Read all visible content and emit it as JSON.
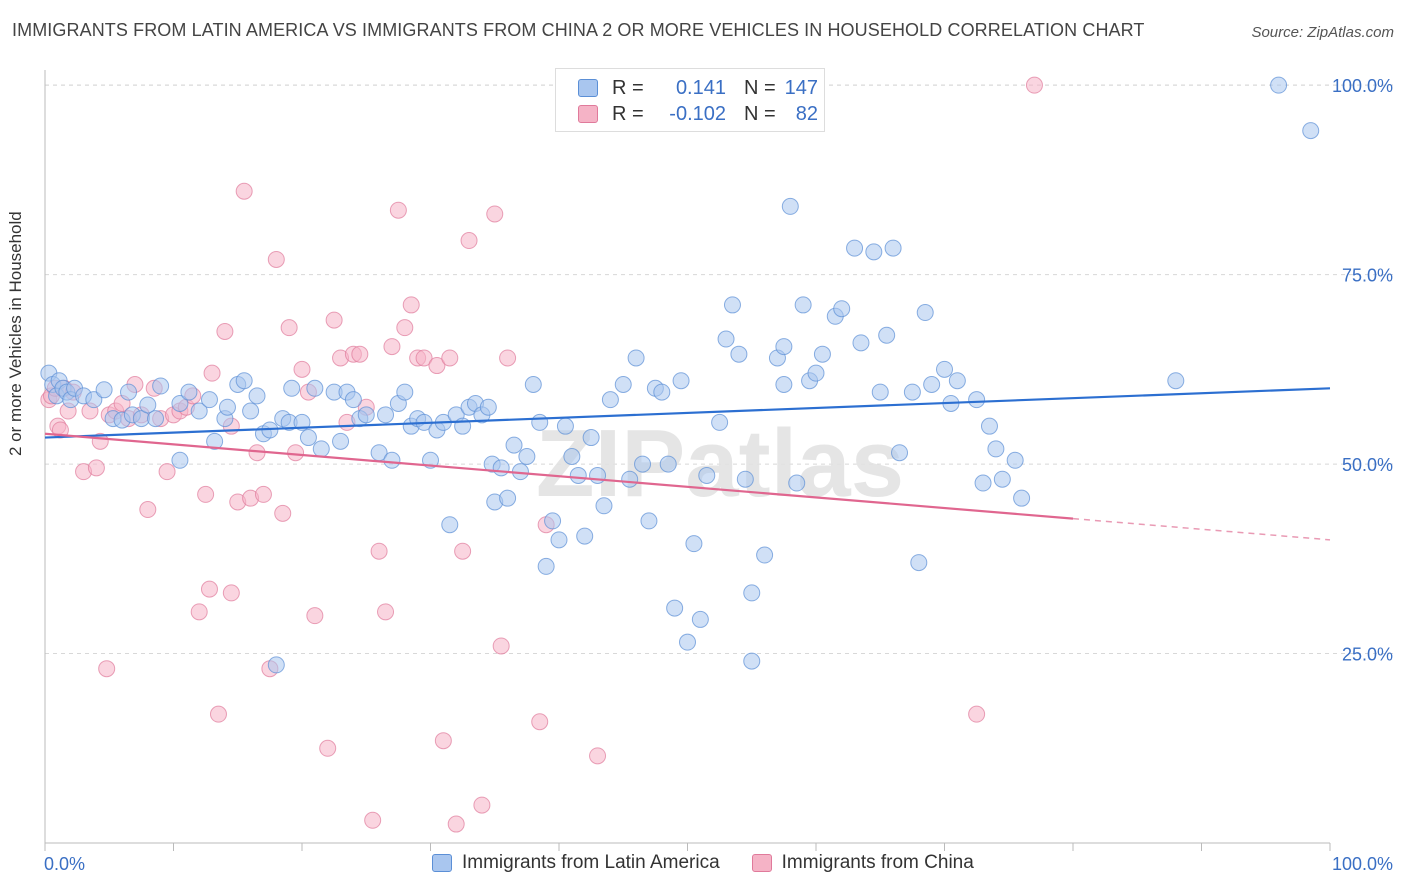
{
  "title": "IMMIGRANTS FROM LATIN AMERICA VS IMMIGRANTS FROM CHINA 2 OR MORE VEHICLES IN HOUSEHOLD CORRELATION CHART",
  "source": "Source: ZipAtlas.com",
  "watermark": "ZIPatlas",
  "legend": {
    "rows": [
      {
        "r_label": "R =",
        "r_value": "0.141",
        "n_label": "N =",
        "n_value": "147",
        "color": "#a9c6ef"
      },
      {
        "r_label": "R =",
        "r_value": "-0.102",
        "n_label": "N =",
        "n_value": "82",
        "color": "#f5b3c6"
      }
    ]
  },
  "bottom_legend": [
    {
      "label": "Immigrants from Latin America",
      "color": "#a9c6ef"
    },
    {
      "label": "Immigrants from China",
      "color": "#f5b3c6"
    }
  ],
  "chart_data": {
    "type": "scatter",
    "title": "IMMIGRANTS FROM LATIN AMERICA VS IMMIGRANTS FROM CHINA 2 OR MORE VEHICLES IN HOUSEHOLD CORRELATION CHART",
    "xlabel": "",
    "ylabel": "2 or more Vehicles in Household",
    "xlim": [
      0,
      100
    ],
    "ylim": [
      0,
      102
    ],
    "x_tick_labels": [
      "0.0%",
      "100.0%"
    ],
    "y_ticks": [
      25,
      50,
      75,
      100
    ],
    "y_tick_labels": [
      "25.0%",
      "50.0%",
      "75.0%",
      "100.0%"
    ],
    "grid": "horizontal dashed",
    "series": [
      {
        "name": "Immigrants from Latin America",
        "color": "#5b8fd6",
        "fill": "#a9c6ef",
        "trend": {
          "x": [
            0,
            100
          ],
          "y": [
            53.5,
            60
          ]
        },
        "points": [
          [
            0.3,
            62
          ],
          [
            0.6,
            60.5
          ],
          [
            0.9,
            59
          ],
          [
            1.1,
            61
          ],
          [
            1.4,
            60
          ],
          [
            1.7,
            59.5
          ],
          [
            2,
            58.5
          ],
          [
            2.3,
            60
          ],
          [
            3,
            59
          ],
          [
            3.8,
            58.5
          ],
          [
            4.6,
            59.8
          ],
          [
            5.3,
            56
          ],
          [
            6,
            55.8
          ],
          [
            6.5,
            59.5
          ],
          [
            6.8,
            56.5
          ],
          [
            7.5,
            56
          ],
          [
            8,
            57.8
          ],
          [
            8.6,
            56
          ],
          [
            9,
            60.3
          ],
          [
            10.5,
            58
          ],
          [
            10.5,
            50.5
          ],
          [
            11.2,
            59.5
          ],
          [
            12,
            57
          ],
          [
            12.8,
            58.5
          ],
          [
            13.2,
            53
          ],
          [
            14,
            56
          ],
          [
            14.2,
            57.5
          ],
          [
            15,
            60.5
          ],
          [
            15.5,
            61
          ],
          [
            16,
            57
          ],
          [
            16.5,
            59
          ],
          [
            17,
            54
          ],
          [
            17.5,
            54.5
          ],
          [
            18,
            23.5
          ],
          [
            18.5,
            56
          ],
          [
            19.2,
            60
          ],
          [
            19,
            55.5
          ],
          [
            20,
            55.5
          ],
          [
            20.5,
            53.5
          ],
          [
            21,
            60
          ],
          [
            21.5,
            52
          ],
          [
            22.5,
            59.5
          ],
          [
            23,
            53
          ],
          [
            23.5,
            59.5
          ],
          [
            24,
            58.5
          ],
          [
            24.5,
            56
          ],
          [
            25,
            56.5
          ],
          [
            26,
            51.5
          ],
          [
            26.5,
            56.5
          ],
          [
            27,
            50.5
          ],
          [
            27.5,
            58
          ],
          [
            28,
            59.5
          ],
          [
            28.5,
            55
          ],
          [
            29,
            56
          ],
          [
            29.5,
            55.5
          ],
          [
            30,
            50.5
          ],
          [
            30.5,
            54.5
          ],
          [
            31,
            55.5
          ],
          [
            31.5,
            42
          ],
          [
            32,
            56.5
          ],
          [
            32.5,
            55
          ],
          [
            33,
            57.5
          ],
          [
            33.5,
            58
          ],
          [
            34,
            56.5
          ],
          [
            34.5,
            57.5
          ],
          [
            34.8,
            50
          ],
          [
            35,
            45
          ],
          [
            35.5,
            49.5
          ],
          [
            36,
            45.5
          ],
          [
            36.5,
            52.5
          ],
          [
            37,
            49
          ],
          [
            37.5,
            51
          ],
          [
            38,
            60.5
          ],
          [
            38.5,
            55.5
          ],
          [
            39,
            36.5
          ],
          [
            39.5,
            42.5
          ],
          [
            40,
            40
          ],
          [
            40.5,
            55
          ],
          [
            41,
            51
          ],
          [
            41.5,
            48.5
          ],
          [
            42,
            40.5
          ],
          [
            42.5,
            53.5
          ],
          [
            43,
            48.5
          ],
          [
            43.5,
            44.5
          ],
          [
            44,
            58.5
          ],
          [
            45,
            60.5
          ],
          [
            45.5,
            48
          ],
          [
            46,
            64
          ],
          [
            46.5,
            50
          ],
          [
            47,
            42.5
          ],
          [
            47.5,
            60
          ],
          [
            48,
            59.5
          ],
          [
            48.5,
            50
          ],
          [
            49,
            31
          ],
          [
            49.5,
            61
          ],
          [
            50,
            26.5
          ],
          [
            50.5,
            39.5
          ],
          [
            51,
            29.5
          ],
          [
            51.5,
            48.5
          ],
          [
            52.5,
            55.5
          ],
          [
            53,
            66.5
          ],
          [
            53.5,
            71
          ],
          [
            54,
            64.5
          ],
          [
            54.5,
            48
          ],
          [
            55,
            33
          ],
          [
            55,
            24
          ],
          [
            56,
            38
          ],
          [
            57,
            64
          ],
          [
            57.5,
            65.5
          ],
          [
            57.5,
            60.5
          ],
          [
            58,
            84
          ],
          [
            58.5,
            47.5
          ],
          [
            59,
            71
          ],
          [
            59.5,
            61
          ],
          [
            60,
            62
          ],
          [
            60.5,
            64.5
          ],
          [
            61.5,
            69.5
          ],
          [
            62,
            70.5
          ],
          [
            63,
            78.5
          ],
          [
            63.5,
            66
          ],
          [
            64.5,
            78
          ],
          [
            65,
            59.5
          ],
          [
            65.5,
            67
          ],
          [
            66,
            78.5
          ],
          [
            66.5,
            51.5
          ],
          [
            67.5,
            59.5
          ],
          [
            68,
            37
          ],
          [
            68.5,
            70
          ],
          [
            69,
            60.5
          ],
          [
            70,
            62.5
          ],
          [
            70.5,
            58
          ],
          [
            71,
            61
          ],
          [
            72.5,
            58.5
          ],
          [
            73,
            47.5
          ],
          [
            73.5,
            55
          ],
          [
            74,
            52
          ],
          [
            74.5,
            48
          ],
          [
            75.5,
            50.5
          ],
          [
            76,
            45.5
          ],
          [
            88,
            61
          ],
          [
            96,
            100
          ],
          [
            98.5,
            94
          ]
        ]
      },
      {
        "name": "Immigrants from China",
        "color": "#e07a9b",
        "fill": "#f5b3c6",
        "trend": {
          "x": [
            0,
            80
          ],
          "y": [
            54,
            42.8
          ]
        },
        "trend_dashed": {
          "x": [
            80,
            100
          ],
          "y": [
            42.8,
            40
          ]
        },
        "points": [
          [
            0.3,
            58.5
          ],
          [
            0.5,
            59
          ],
          [
            0.8,
            60
          ],
          [
            1,
            55
          ],
          [
            1.2,
            54.5
          ],
          [
            1.5,
            60
          ],
          [
            1.8,
            57
          ],
          [
            2.2,
            59.5
          ],
          [
            3,
            49
          ],
          [
            3.5,
            57
          ],
          [
            4,
            49.5
          ],
          [
            4.3,
            53
          ],
          [
            4.8,
            23
          ],
          [
            5,
            56.5
          ],
          [
            5.5,
            57
          ],
          [
            6,
            58
          ],
          [
            6.5,
            56
          ],
          [
            7,
            60.5
          ],
          [
            7.5,
            56.5
          ],
          [
            8,
            44
          ],
          [
            8.5,
            60
          ],
          [
            9,
            56
          ],
          [
            9.5,
            49
          ],
          [
            10,
            56.5
          ],
          [
            10.5,
            57
          ],
          [
            11,
            57.5
          ],
          [
            11.5,
            59
          ],
          [
            12,
            30.5
          ],
          [
            12.5,
            46
          ],
          [
            12.8,
            33.5
          ],
          [
            13,
            62
          ],
          [
            13.5,
            17
          ],
          [
            14,
            67.5
          ],
          [
            14.5,
            55
          ],
          [
            14.5,
            33
          ],
          [
            15,
            45
          ],
          [
            15.5,
            86
          ],
          [
            16,
            45.5
          ],
          [
            16.5,
            51.5
          ],
          [
            17,
            46
          ],
          [
            17.5,
            23
          ],
          [
            18,
            77
          ],
          [
            18.5,
            43.5
          ],
          [
            19,
            68
          ],
          [
            19.5,
            51.5
          ],
          [
            20,
            62.5
          ],
          [
            20.5,
            59.5
          ],
          [
            21,
            30
          ],
          [
            22,
            12.5
          ],
          [
            22.5,
            69
          ],
          [
            23,
            64
          ],
          [
            23.5,
            55.5
          ],
          [
            24,
            64.5
          ],
          [
            24.5,
            64.5
          ],
          [
            25,
            57.5
          ],
          [
            25.5,
            3
          ],
          [
            26,
            38.5
          ],
          [
            26.5,
            30.5
          ],
          [
            27,
            65.5
          ],
          [
            27.5,
            83.5
          ],
          [
            28,
            68
          ],
          [
            28.5,
            71
          ],
          [
            29,
            64
          ],
          [
            29.5,
            64
          ],
          [
            30.5,
            63
          ],
          [
            31,
            13.5
          ],
          [
            31.5,
            64
          ],
          [
            32,
            2.5
          ],
          [
            32.5,
            38.5
          ],
          [
            33,
            79.5
          ],
          [
            34,
            5
          ],
          [
            35,
            83
          ],
          [
            35.5,
            26
          ],
          [
            36,
            64
          ],
          [
            38.5,
            16
          ],
          [
            39,
            42
          ],
          [
            43,
            11.5
          ],
          [
            72.5,
            17
          ],
          [
            77,
            100
          ]
        ]
      }
    ]
  }
}
